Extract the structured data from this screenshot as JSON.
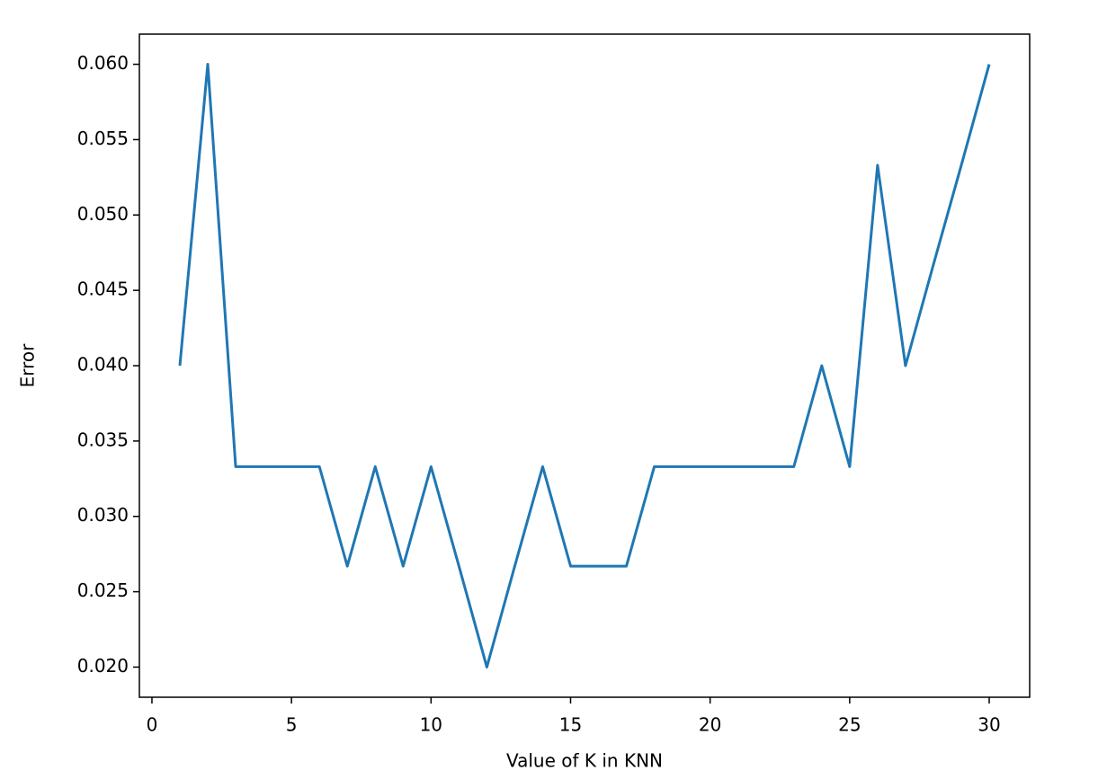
{
  "chart_data": {
    "type": "line",
    "x_label": "Value of K in KNN",
    "y_label": "Error",
    "x": [
      1,
      2,
      3,
      4,
      5,
      6,
      7,
      8,
      9,
      10,
      11,
      12,
      13,
      14,
      15,
      16,
      17,
      18,
      19,
      20,
      21,
      22,
      23,
      24,
      25,
      26,
      27,
      28,
      29,
      30
    ],
    "series": [
      {
        "color": "#1f77b4",
        "values": [
          0.04,
          0.06,
          0.0333,
          0.0333,
          0.0333,
          0.0333,
          0.0267,
          0.0333,
          0.0267,
          0.0333,
          0.0267,
          0.02,
          0.0267,
          0.0333,
          0.0267,
          0.0267,
          0.0267,
          0.0333,
          0.0333,
          0.0333,
          0.0333,
          0.0333,
          0.0333,
          0.04,
          0.0333,
          0.0533,
          0.04,
          0.0467,
          0.0533,
          0.06
        ]
      }
    ],
    "xlim": [
      -0.45,
      31.45
    ],
    "xticks": [
      0,
      5,
      10,
      15,
      20,
      25,
      30
    ],
    "ylim": [
      0.018,
      0.062
    ],
    "yticks": [
      {
        "value": 0.02,
        "label": "0.020"
      },
      {
        "value": 0.025,
        "label": "0.025"
      },
      {
        "value": 0.03,
        "label": "0.030"
      },
      {
        "value": 0.035,
        "label": "0.035"
      },
      {
        "value": 0.04,
        "label": "0.040"
      },
      {
        "value": 0.045,
        "label": "0.045"
      },
      {
        "value": 0.05,
        "label": "0.050"
      },
      {
        "value": 0.055,
        "label": "0.055"
      },
      {
        "value": 0.06,
        "label": "0.060"
      }
    ],
    "grid": false
  }
}
